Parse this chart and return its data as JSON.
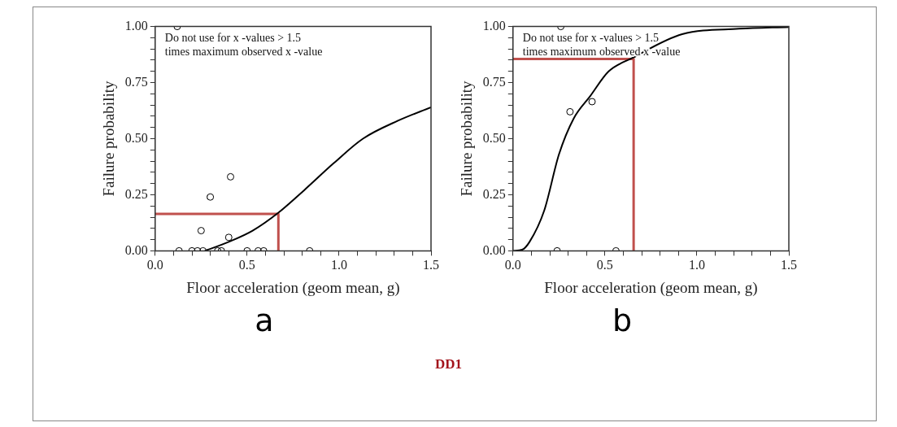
{
  "chart_data": [
    {
      "type": "scatter",
      "title": "a",
      "xlabel": "Floor acceleration (geom mean, g)",
      "ylabel": "Failure probability",
      "annotations": [
        "Do not use for x -values > 1.5 times maximum observed x -value",
        "DD1"
      ],
      "xlim": [
        0,
        1.5
      ],
      "ylim": [
        0,
        1
      ],
      "xticks": [
        {
          "value": 0,
          "label": "0.0"
        },
        {
          "value": 0.1,
          "label": null
        },
        {
          "value": 0.2,
          "label": null
        },
        {
          "value": 0.3,
          "label": null
        },
        {
          "value": 0.4,
          "label": null
        },
        {
          "value": 0.5,
          "label": "0.5"
        },
        {
          "value": 0.6,
          "label": null
        },
        {
          "value": 0.7,
          "label": null
        },
        {
          "value": 0.8,
          "label": null
        },
        {
          "value": 0.9,
          "label": null
        },
        {
          "value": 1,
          "label": "1.0"
        },
        {
          "value": 1.1,
          "label": null
        },
        {
          "value": 1.2,
          "label": null
        },
        {
          "value": 1.3,
          "label": null
        },
        {
          "value": 1.4,
          "label": null
        },
        {
          "value": 1.5,
          "label": "1.5"
        }
      ],
      "yticks": [
        {
          "value": 0,
          "label": "0.00"
        },
        {
          "value": 0.05,
          "label": null
        },
        {
          "value": 0.1,
          "label": null
        },
        {
          "value": 0.15,
          "label": null
        },
        {
          "value": 0.2,
          "label": null
        },
        {
          "value": 0.25,
          "label": "0.25"
        },
        {
          "value": 0.3,
          "label": null
        },
        {
          "value": 0.35,
          "label": null
        },
        {
          "value": 0.4,
          "label": null
        },
        {
          "value": 0.45,
          "label": null
        },
        {
          "value": 0.5,
          "label": "0.50"
        },
        {
          "value": 0.55,
          "label": null
        },
        {
          "value": 0.6,
          "label": null
        },
        {
          "value": 0.65,
          "label": null
        },
        {
          "value": 0.7,
          "label": null
        },
        {
          "value": 0.75,
          "label": "0.75"
        },
        {
          "value": 0.8,
          "label": null
        },
        {
          "value": 0.85,
          "label": null
        },
        {
          "value": 0.9,
          "label": null
        },
        {
          "value": 0.95,
          "label": null
        },
        {
          "value": 1,
          "label": "1.00"
        }
      ],
      "grid": false,
      "series": [
        {
          "type": "scatter",
          "color": "#000000",
          "marker": "circle",
          "x": [
            0.12,
            0.13,
            0.2,
            0.23,
            0.26,
            0.34,
            0.36,
            0.5,
            0.56,
            0.59,
            0.84,
            0.25,
            0.3,
            0.41,
            0.4
          ],
          "values": [
            1,
            0,
            0,
            0,
            0,
            0,
            0,
            0,
            0,
            0,
            0,
            0.09,
            0.24,
            0.33,
            0.06
          ]
        },
        {
          "type": "line",
          "color": "#000000",
          "marker": "none",
          "x": [
            0.27,
            0.4,
            0.53,
            0.67,
            0.81,
            0.97,
            1.13,
            1.32,
            1.5
          ],
          "values": [
            0,
            0.04,
            0.09,
            0.17,
            0.27,
            0.39,
            0.5,
            0.58,
            0.64
          ]
        },
        {
          "type": "line",
          "color": "#c0504d",
          "marker": "none",
          "x": [
            0,
            0.67,
            0.67
          ],
          "values": [
            0.165,
            0.165,
            0
          ]
        }
      ]
    },
    {
      "type": "scatter",
      "title": "b",
      "xlabel": "Floor acceleration (geom mean, g)",
      "ylabel": "Failure probability",
      "annotations": [
        "Do not use for x -values > 1.5 times maximum observed x -value"
      ],
      "xlim": [
        0,
        1.5
      ],
      "ylim": [
        0,
        1
      ],
      "xticks": [
        {
          "value": 0,
          "label": "0.0"
        },
        {
          "value": 0.1,
          "label": null
        },
        {
          "value": 0.2,
          "label": null
        },
        {
          "value": 0.3,
          "label": null
        },
        {
          "value": 0.4,
          "label": null
        },
        {
          "value": 0.5,
          "label": "0.5"
        },
        {
          "value": 0.6,
          "label": null
        },
        {
          "value": 0.7,
          "label": null
        },
        {
          "value": 0.8,
          "label": null
        },
        {
          "value": 0.9,
          "label": null
        },
        {
          "value": 1,
          "label": "1.0"
        },
        {
          "value": 1.1,
          "label": null
        },
        {
          "value": 1.2,
          "label": null
        },
        {
          "value": 1.3,
          "label": null
        },
        {
          "value": 1.4,
          "label": null
        },
        {
          "value": 1.5,
          "label": "1.5"
        }
      ],
      "yticks": [
        {
          "value": 0,
          "label": "0.00"
        },
        {
          "value": 0.05,
          "label": null
        },
        {
          "value": 0.1,
          "label": null
        },
        {
          "value": 0.15,
          "label": null
        },
        {
          "value": 0.2,
          "label": null
        },
        {
          "value": 0.25,
          "label": "0.25"
        },
        {
          "value": 0.3,
          "label": null
        },
        {
          "value": 0.35,
          "label": null
        },
        {
          "value": 0.4,
          "label": null
        },
        {
          "value": 0.45,
          "label": null
        },
        {
          "value": 0.5,
          "label": "0.50"
        },
        {
          "value": 0.55,
          "label": null
        },
        {
          "value": 0.6,
          "label": null
        },
        {
          "value": 0.65,
          "label": null
        },
        {
          "value": 0.7,
          "label": null
        },
        {
          "value": 0.75,
          "label": "0.75"
        },
        {
          "value": 0.8,
          "label": null
        },
        {
          "value": 0.85,
          "label": null
        },
        {
          "value": 0.9,
          "label": null
        },
        {
          "value": 0.95,
          "label": null
        },
        {
          "value": 1,
          "label": "1.00"
        }
      ],
      "grid": false,
      "series": [
        {
          "type": "scatter",
          "color": "#000000",
          "marker": "circle",
          "x": [
            0.26,
            0.24,
            0.56,
            0.31,
            0.43
          ],
          "values": [
            1,
            0,
            0,
            0.62,
            0.665
          ]
        },
        {
          "type": "line",
          "color": "#000000",
          "marker": "none",
          "x": [
            0,
            0.05,
            0.09,
            0.17,
            0.25,
            0.33,
            0.42,
            0.52,
            0.65,
            0.92,
            1.23,
            1.5
          ],
          "values": [
            0,
            0.005,
            0.04,
            0.18,
            0.43,
            0.59,
            0.69,
            0.8,
            0.86,
            0.966,
            0.99,
            0.998
          ]
        },
        {
          "type": "line",
          "color": "#c0504d",
          "marker": "none",
          "x": [
            0,
            0.656,
            0.656
          ],
          "values": [
            0.855,
            0.855,
            0
          ]
        }
      ]
    }
  ]
}
